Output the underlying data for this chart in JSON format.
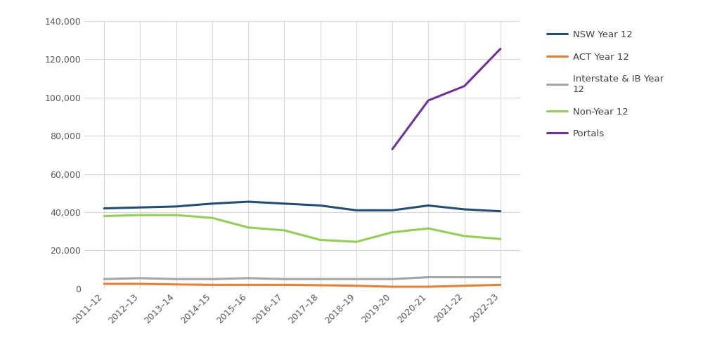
{
  "years": [
    "2011–12",
    "2012–13",
    "2013–14",
    "2014–15",
    "2015–16",
    "2016–17",
    "2017–18",
    "2018–19",
    "2019-20",
    "2020-21",
    "2021-22",
    "2022-23"
  ],
  "nsw_year12": [
    42000,
    42500,
    43000,
    44500,
    45500,
    44500,
    43500,
    41000,
    41000,
    43500,
    41500,
    40500
  ],
  "act_year12": [
    2500,
    2500,
    2200,
    2000,
    2000,
    2000,
    1800,
    1500,
    1000,
    1000,
    1500,
    2000
  ],
  "interstate_ib": [
    5000,
    5500,
    5000,
    5000,
    5500,
    5000,
    5000,
    5000,
    5000,
    6000,
    6000,
    6000
  ],
  "non_year12": [
    38000,
    38500,
    38500,
    37000,
    32000,
    30500,
    25500,
    24500,
    29500,
    31500,
    27500,
    26000
  ],
  "portals": [
    null,
    null,
    null,
    null,
    null,
    null,
    null,
    null,
    73000,
    98500,
    106000,
    125500
  ],
  "colors": {
    "nsw_year12": "#1f4e79",
    "act_year12": "#ed7d31",
    "interstate_ib": "#a5a5a5",
    "non_year12": "#92d050",
    "portals": "#7030a0"
  },
  "legend_labels": {
    "nsw_year12": "NSW Year 12",
    "act_year12": "ACT Year 12",
    "interstate_ib": "Interstate & IB Year\n12",
    "non_year12": "Non-Year 12",
    "portals": "Portals"
  },
  "ylim": [
    0,
    140000
  ],
  "yticks": [
    0,
    20000,
    40000,
    60000,
    80000,
    100000,
    120000,
    140000
  ],
  "background_color": "#ffffff",
  "grid_color": "#d9d9d9",
  "line_width": 2.2,
  "figsize": [
    10.0,
    5.01
  ],
  "dpi": 100
}
